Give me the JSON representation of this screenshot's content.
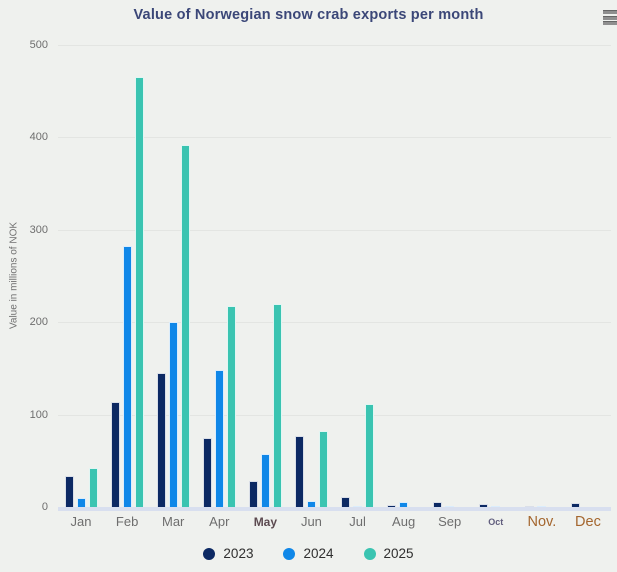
{
  "chart_data": {
    "type": "bar",
    "title": "Value of Norwegian snow crab exports per month",
    "ylabel": "Value in millions of NOK",
    "xlabel": "",
    "ylim": [
      0,
      500
    ],
    "y_ticks": [
      500,
      400,
      300,
      200,
      100,
      0
    ],
    "grid": "horizontal",
    "legend_position": "bottom-center",
    "categories": [
      "Jan",
      "Feb",
      "Mar",
      "Apr",
      "May",
      "Jun",
      "Jul",
      "Aug",
      "Sep",
      "Oct",
      "Nov.",
      "Dec"
    ],
    "category_label_styles": [
      "default",
      "default",
      "default",
      "default",
      "may",
      "default",
      "default",
      "default",
      "default",
      "oct",
      "novdec",
      "novdec"
    ],
    "series": [
      {
        "name": "2023",
        "color": "#0c2963",
        "values": [
          34,
          114,
          145,
          75,
          28,
          77,
          11,
          2,
          5,
          3,
          1,
          4
        ]
      },
      {
        "name": "2024",
        "color": "#0f87e8",
        "values": [
          10,
          283,
          200,
          148,
          57,
          7,
          1,
          5,
          1,
          1,
          1,
          0
        ]
      },
      {
        "name": "2025",
        "color": "#3ac4b1",
        "values": [
          42,
          465,
          392,
          218,
          220,
          82,
          112,
          0,
          0,
          0,
          0,
          0
        ]
      }
    ]
  },
  "controls": {
    "context_menu_icon": "hamburger-menu-icon"
  }
}
